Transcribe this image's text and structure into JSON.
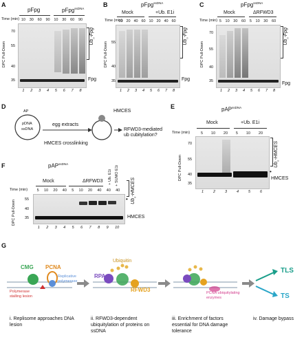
{
  "panels": {
    "A": {
      "letter": "A",
      "group1": "pFpg",
      "group2": "pFpg",
      "group2_sup": "ssDNA",
      "time_label": "Time (min)",
      "times": [
        "10",
        "30",
        "60",
        "90",
        "10",
        "30",
        "60",
        "90"
      ],
      "y_label": "DPC Pull-Down",
      "right_label": "Ub",
      "right_label_sub": "n",
      "right_label_rest": "-Fpg",
      "band_label": "Fpg",
      "mw": [
        "70",
        "55",
        "40",
        "35"
      ],
      "lanes": [
        "1",
        "2",
        "3",
        "4",
        "5",
        "6",
        "7",
        "8"
      ]
    },
    "B": {
      "letter": "B",
      "title": "pFpg",
      "title_sup": "ssDNA",
      "group1": "Mock",
      "group2": "+Ub. E1i",
      "time_label": "Time (min)",
      "times": [
        "10",
        "20",
        "40",
        "60",
        "10",
        "20",
        "40",
        "60"
      ],
      "y_label": "DPC Pull-Down",
      "right_label": "Ub",
      "right_label_sub": "n",
      "right_label_rest": "-Fpg",
      "band_label": "Fpg",
      "mw": [
        "55",
        "40",
        "35"
      ],
      "lanes": [
        "1",
        "2",
        "3",
        "4",
        "5",
        "6",
        "7",
        "8"
      ]
    },
    "C": {
      "letter": "C",
      "title": "pFpg",
      "title_sup": "ssDNA",
      "group1": "Mock",
      "group2": "ΔRFWD3",
      "time_label": "Time (min)",
      "times": [
        "5",
        "10",
        "30",
        "60",
        "5",
        "10",
        "30",
        "60"
      ],
      "y_label": "DPC Pull-Down",
      "right_label": "Ub",
      "right_label_sub": "n",
      "right_label_rest": "-Fpg",
      "band_label": "Fpg",
      "mw": [
        "70",
        "55",
        "40",
        "35"
      ],
      "lanes": [
        "1",
        "2",
        "3",
        "4",
        "5",
        "6",
        "7",
        "8"
      ]
    },
    "D": {
      "letter": "D",
      "plasmid_label_1": "AP",
      "plasmid_label_2": "pDNA",
      "plasmid_label_3": "ssDNA",
      "step1": "egg extracts",
      "step2": "HMCES crosslinking",
      "protein": "HMCES",
      "question": "RFWD3-mediated ub cubitylation?"
    },
    "E": {
      "letter": "E",
      "title": "pAP",
      "title_sup": "ssDNA",
      "group1": "Mock",
      "group2": "+Ub. E1i",
      "time_label": "Time (min)",
      "times": [
        "5",
        "10",
        "20",
        "5",
        "10",
        "20"
      ],
      "y_label": "DPC Pull-Down",
      "right_label": "Ub",
      "right_label_sub": "n",
      "right_label_rest": "-HMCES",
      "band_label": "HMCES",
      "mw": [
        "70",
        "55",
        "40",
        "35"
      ],
      "lanes": [
        "1",
        "2",
        "3",
        "4",
        "5",
        "6"
      ],
      "marker": "•"
    },
    "F": {
      "letter": "F",
      "title": "pAP",
      "title_sup": "ssDNA",
      "group1": "Mock",
      "group2": "ΔRFWD3",
      "extra1": "+ Ub. E1i",
      "extra2": "+ SUMO E1i",
      "time_label": "Time (min)",
      "times": [
        "5",
        "10",
        "20",
        "40",
        "5",
        "10",
        "20",
        "40",
        "40",
        "40"
      ],
      "y_label": "DPC Pull-Down",
      "right_label": "Ub",
      "right_label_sub": "n",
      "right_label_rest": "-HMCES",
      "band_label": "HMCES",
      "mw": [
        "55",
        "40",
        "35"
      ],
      "lanes": [
        "1",
        "2",
        "3",
        "4",
        "5",
        "6",
        "7",
        "8",
        "9",
        "10"
      ],
      "marker": "•"
    },
    "G": {
      "letter": "G",
      "labels": {
        "cmg": "CMG",
        "pcna": "PCNA",
        "replicative": "Replicative",
        "polymerase": "polymerase",
        "pol_stalling_1": "Polymerase",
        "pol_stalling_2": "stalling lesion",
        "ubiquitin": "Ubiquitin",
        "rpa": "RPA",
        "rfwd3": "RFWD3",
        "pcna_ub_1": "PCNA ubiquitylating",
        "pcna_ub_2": "enzymes",
        "tls": "TLS",
        "ts": "TS"
      },
      "steps": [
        {
          "num": "i.",
          "text": "Replisome approaches DNA lesion"
        },
        {
          "num": "ii.",
          "text": "RFWD3-dependent ubiquitylation of proteins on ssDNA"
        },
        {
          "num": "iii.",
          "text": "Enrichment of factors essential for DNA damage tolerance"
        },
        {
          "num": "iv.",
          "text": "Damage bypass"
        }
      ]
    }
  },
  "colors": {
    "cmg": "#3aa655",
    "pcna": "#e08a1e",
    "rpa": "#7a4bbf",
    "rfwd3": "#e5a21f",
    "tls": "#1a9e8a",
    "ts": "#2aa6c8",
    "ubiquitin": "#e8b84a",
    "pcna_ub": "#d23c8c",
    "lesion": "#d03030",
    "arrow": "#8a8a8a"
  }
}
